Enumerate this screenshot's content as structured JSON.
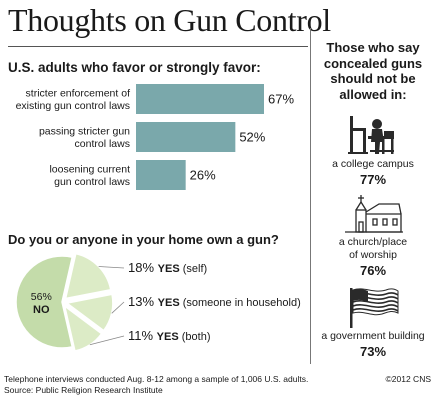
{
  "title": "Thoughts on Gun Control",
  "bar_section": {
    "heading": "U.S. adults who favor or strongly favor:"
  },
  "pie_section": {
    "heading": "Do you or anyone in your home own a gun?",
    "yes_word": "YES"
  },
  "side": {
    "heading_lines": [
      "Those who say",
      "concealed guns",
      "should not be",
      "allowed in:"
    ],
    "items": [
      {
        "icon": "student-at-desk-icon",
        "place_lines": [
          "a college campus"
        ],
        "pct": "77%"
      },
      {
        "icon": "church-icon",
        "place_lines": [
          "a church/place",
          "of worship"
        ],
        "pct": "76%"
      },
      {
        "icon": "american-flag-icon",
        "place_lines": [
          "a government building"
        ],
        "pct": "73%"
      }
    ]
  },
  "footer": {
    "note": "Telephone interviews conducted Aug. 8-12 among a sample of 1,006 U.S. adults.",
    "source": "Source: Public Religion Research Institute",
    "credit": "©2012 CNS"
  },
  "colors": {
    "bar": "#7aa8ab",
    "pie_no": "#c4dcaa",
    "pie_yes": "#dcebc6",
    "pie_stroke": "#ffffff"
  },
  "chart_data": [
    {
      "type": "bar",
      "orientation": "horizontal",
      "title": "U.S. adults who favor or strongly favor:",
      "categories": [
        [
          "stricter enforcement of",
          "existing gun control laws"
        ],
        [
          "passing stricter gun",
          "control laws"
        ],
        [
          "loosening current",
          "gun control laws"
        ]
      ],
      "values": [
        67,
        52,
        26
      ],
      "value_labels": [
        "67%",
        "52%",
        "26%"
      ],
      "xlim": [
        0,
        67
      ],
      "grid": false
    },
    {
      "type": "pie",
      "title": "Do you or anyone in your home own a gun?",
      "slices": [
        {
          "label": "NO",
          "value": 56,
          "pct_label": "56%"
        },
        {
          "label": "YES",
          "detail": "(self)",
          "value": 18,
          "pct_label": "18%"
        },
        {
          "label": "YES",
          "detail": "(someone in household)",
          "value": 13,
          "pct_label": "13%"
        },
        {
          "label": "YES",
          "detail": "(both)",
          "value": 11,
          "pct_label": "11%"
        }
      ]
    }
  ]
}
